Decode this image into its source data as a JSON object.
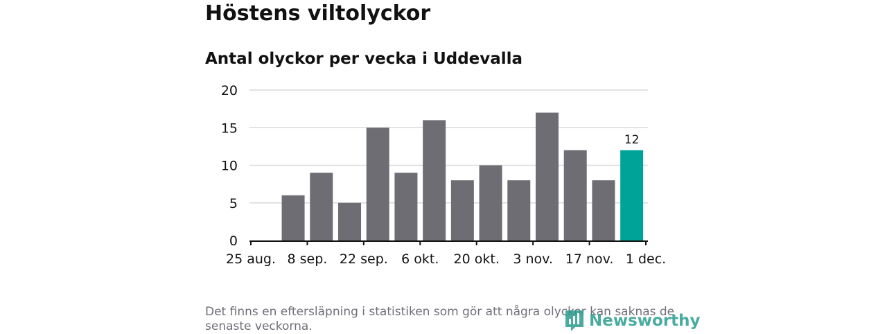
{
  "title": "Höstens viltolyckor",
  "subtitle": "Antal olyckor per vecka i Uddevalla",
  "footnote": "Det finns en eftersläpning i statistiken som gör att några olyckor kan saknas de senaste veckorna.",
  "brand": "Newsworthy",
  "colors": {
    "bar": "#6e6d73",
    "highlight": "#00a398",
    "grid": "#d9d9d9",
    "axis": "#111111",
    "brand": "#2a9d8f"
  },
  "chart_data": {
    "type": "bar",
    "title": "Antal olyckor per vecka i Uddevalla",
    "xlabel": "",
    "ylabel": "",
    "ylim": [
      0,
      20
    ],
    "y_ticks": [
      0,
      5,
      10,
      15,
      20
    ],
    "x_tick_labels": [
      "25 aug.",
      "8 sep.",
      "22 sep.",
      "6 okt.",
      "20 okt.",
      "3 nov.",
      "17 nov.",
      "1 dec."
    ],
    "values": [
      6,
      9,
      5,
      15,
      9,
      16,
      8,
      10,
      8,
      17,
      12,
      8,
      12
    ],
    "highlight_index": 12,
    "data_labels": [
      {
        "index": 12,
        "text": "12"
      }
    ],
    "grid": true
  }
}
